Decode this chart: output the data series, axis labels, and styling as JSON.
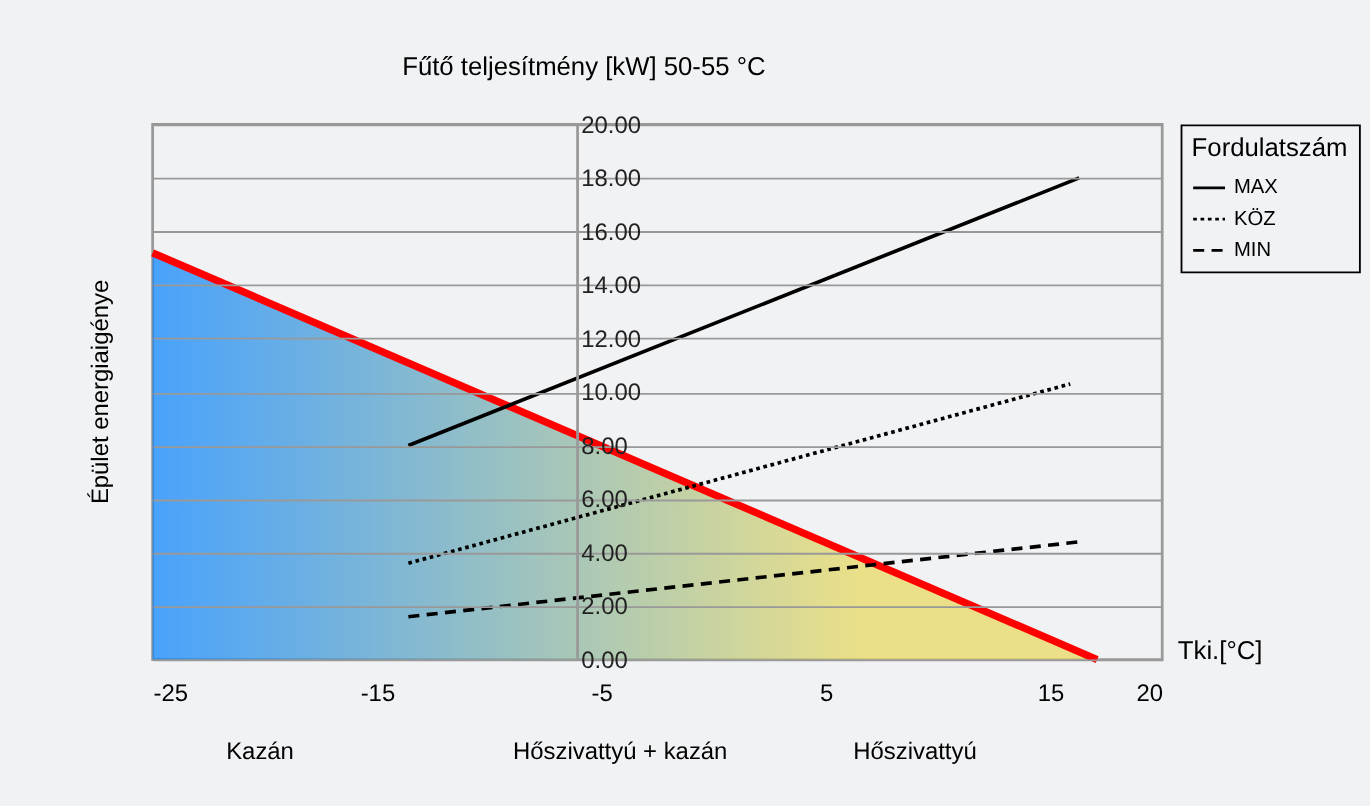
{
  "chart_data": {
    "type": "line",
    "title": "Fűtő teljesítmény [kW] 50-55 °C",
    "xlabel": "Tki.[°C]",
    "ylabel": "Épület energiaigénye",
    "legend_title": "Fordulatszám",
    "legend": "right",
    "xlim": [
      -25,
      20
    ],
    "xticks": [
      -25,
      -15,
      -5,
      5,
      15,
      20
    ],
    "ylim": [
      0,
      20
    ],
    "yticks": [
      {
        "value": 0,
        "label": "0.00"
      },
      {
        "value": 2,
        "label": "2.00"
      },
      {
        "value": 4,
        "label": "4.00"
      },
      {
        "value": 6,
        "label": "6.00"
      },
      {
        "value": 8,
        "label": "8.00"
      },
      {
        "value": 10,
        "label": "10.00"
      },
      {
        "value": 12,
        "label": "12.00"
      },
      {
        "value": 14,
        "label": "14.00"
      },
      {
        "value": 16,
        "label": "16.00"
      },
      {
        "value": 18,
        "label": "18.00"
      },
      {
        "value": 20,
        "label": "20.00"
      }
    ],
    "grid": "y",
    "series": [
      {
        "type": "area",
        "color": "#ff0000",
        "colors": [
          "#0080ff",
          "#e8d85a"
        ],
        "x": [
          -25,
          17.1
        ],
        "values": [
          15.2,
          0
        ]
      },
      {
        "name": "MAX",
        "color": "#000000",
        "line_style": "solid",
        "x": [
          -13.6,
          16.3
        ],
        "values": [
          8.0,
          18.0
        ]
      },
      {
        "name": "KÖZ",
        "color": "#000000",
        "line_style": "dotted",
        "x": [
          -13.6,
          15.9
        ],
        "values": [
          3.6,
          10.3
        ]
      },
      {
        "name": "MIN",
        "color": "#000000",
        "line_style": "dashed",
        "x": [
          -13.6,
          16.3
        ],
        "values": [
          1.6,
          4.4
        ]
      }
    ],
    "annotations": [
      "Kazán",
      "Hőszivattyú + kazán",
      "Hőszivattyú"
    ]
  }
}
